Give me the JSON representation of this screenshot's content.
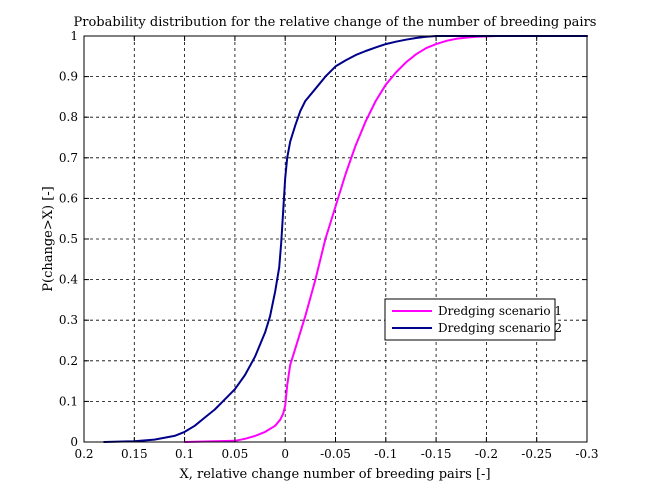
{
  "chart_data": {
    "type": "line",
    "title": "Probability distribution for the relative change of the number of breeding pairs",
    "xlabel": "X, relative change number of breeding pairs [-]",
    "ylabel": "P(change>X) [-]",
    "xlim": [
      0.2,
      -0.3
    ],
    "x_reversed": true,
    "ylim": [
      0,
      1
    ],
    "xticks": [
      0.2,
      0.15,
      0.1,
      0.05,
      0,
      -0.05,
      -0.1,
      -0.15,
      -0.2,
      -0.25,
      -0.3
    ],
    "xtick_labels": [
      "0.2",
      "0.15",
      "0.1",
      "0.05",
      "0",
      "-0.05",
      "-0.1",
      "-0.15",
      "-0.2",
      "-0.25",
      "-0.3"
    ],
    "yticks": [
      0,
      0.1,
      0.2,
      0.3,
      0.4,
      0.5,
      0.6,
      0.7,
      0.8,
      0.9,
      1
    ],
    "ytick_labels": [
      "0",
      "0.1",
      "0.2",
      "0.3",
      "0.4",
      "0.5",
      "0.6",
      "0.7",
      "0.8",
      "0.9",
      "1"
    ],
    "grid": true,
    "legend_position": "right",
    "series": [
      {
        "name": "Dredging scenario 1",
        "color": "#ff00ff",
        "x": [
          0.1,
          0.05,
          0.04,
          0.03,
          0.02,
          0.01,
          0.005,
          0.002,
          0.0,
          -0.002,
          -0.005,
          -0.01,
          -0.02,
          -0.03,
          -0.04,
          -0.05,
          -0.06,
          -0.07,
          -0.08,
          -0.09,
          -0.1,
          -0.11,
          -0.12,
          -0.13,
          -0.14,
          -0.15,
          -0.16,
          -0.17,
          -0.18,
          -0.19,
          -0.2,
          -0.21,
          -0.3
        ],
        "y": [
          0.0,
          0.003,
          0.008,
          0.015,
          0.025,
          0.04,
          0.055,
          0.07,
          0.09,
          0.14,
          0.19,
          0.23,
          0.31,
          0.4,
          0.5,
          0.58,
          0.66,
          0.73,
          0.79,
          0.84,
          0.88,
          0.91,
          0.935,
          0.955,
          0.97,
          0.98,
          0.988,
          0.993,
          0.996,
          0.998,
          0.999,
          1.0,
          1.0
        ]
      },
      {
        "name": "Dredging scenario 2",
        "color": "#00008b",
        "x": [
          0.18,
          0.15,
          0.13,
          0.11,
          0.1,
          0.09,
          0.08,
          0.07,
          0.06,
          0.05,
          0.04,
          0.03,
          0.02,
          0.015,
          0.01,
          0.006,
          0.004,
          0.002,
          0.0,
          -0.002,
          -0.005,
          -0.01,
          -0.015,
          -0.02,
          -0.03,
          -0.04,
          -0.05,
          -0.06,
          -0.07,
          -0.08,
          -0.09,
          -0.1,
          -0.11,
          -0.12,
          -0.13,
          -0.14,
          -0.15,
          -0.3
        ],
        "y": [
          0.0,
          0.002,
          0.006,
          0.015,
          0.025,
          0.04,
          0.06,
          0.08,
          0.105,
          0.13,
          0.165,
          0.21,
          0.27,
          0.31,
          0.37,
          0.43,
          0.49,
          0.57,
          0.65,
          0.7,
          0.74,
          0.78,
          0.815,
          0.84,
          0.87,
          0.9,
          0.925,
          0.94,
          0.953,
          0.963,
          0.972,
          0.98,
          0.986,
          0.991,
          0.995,
          0.998,
          1.0,
          1.0
        ]
      }
    ]
  }
}
